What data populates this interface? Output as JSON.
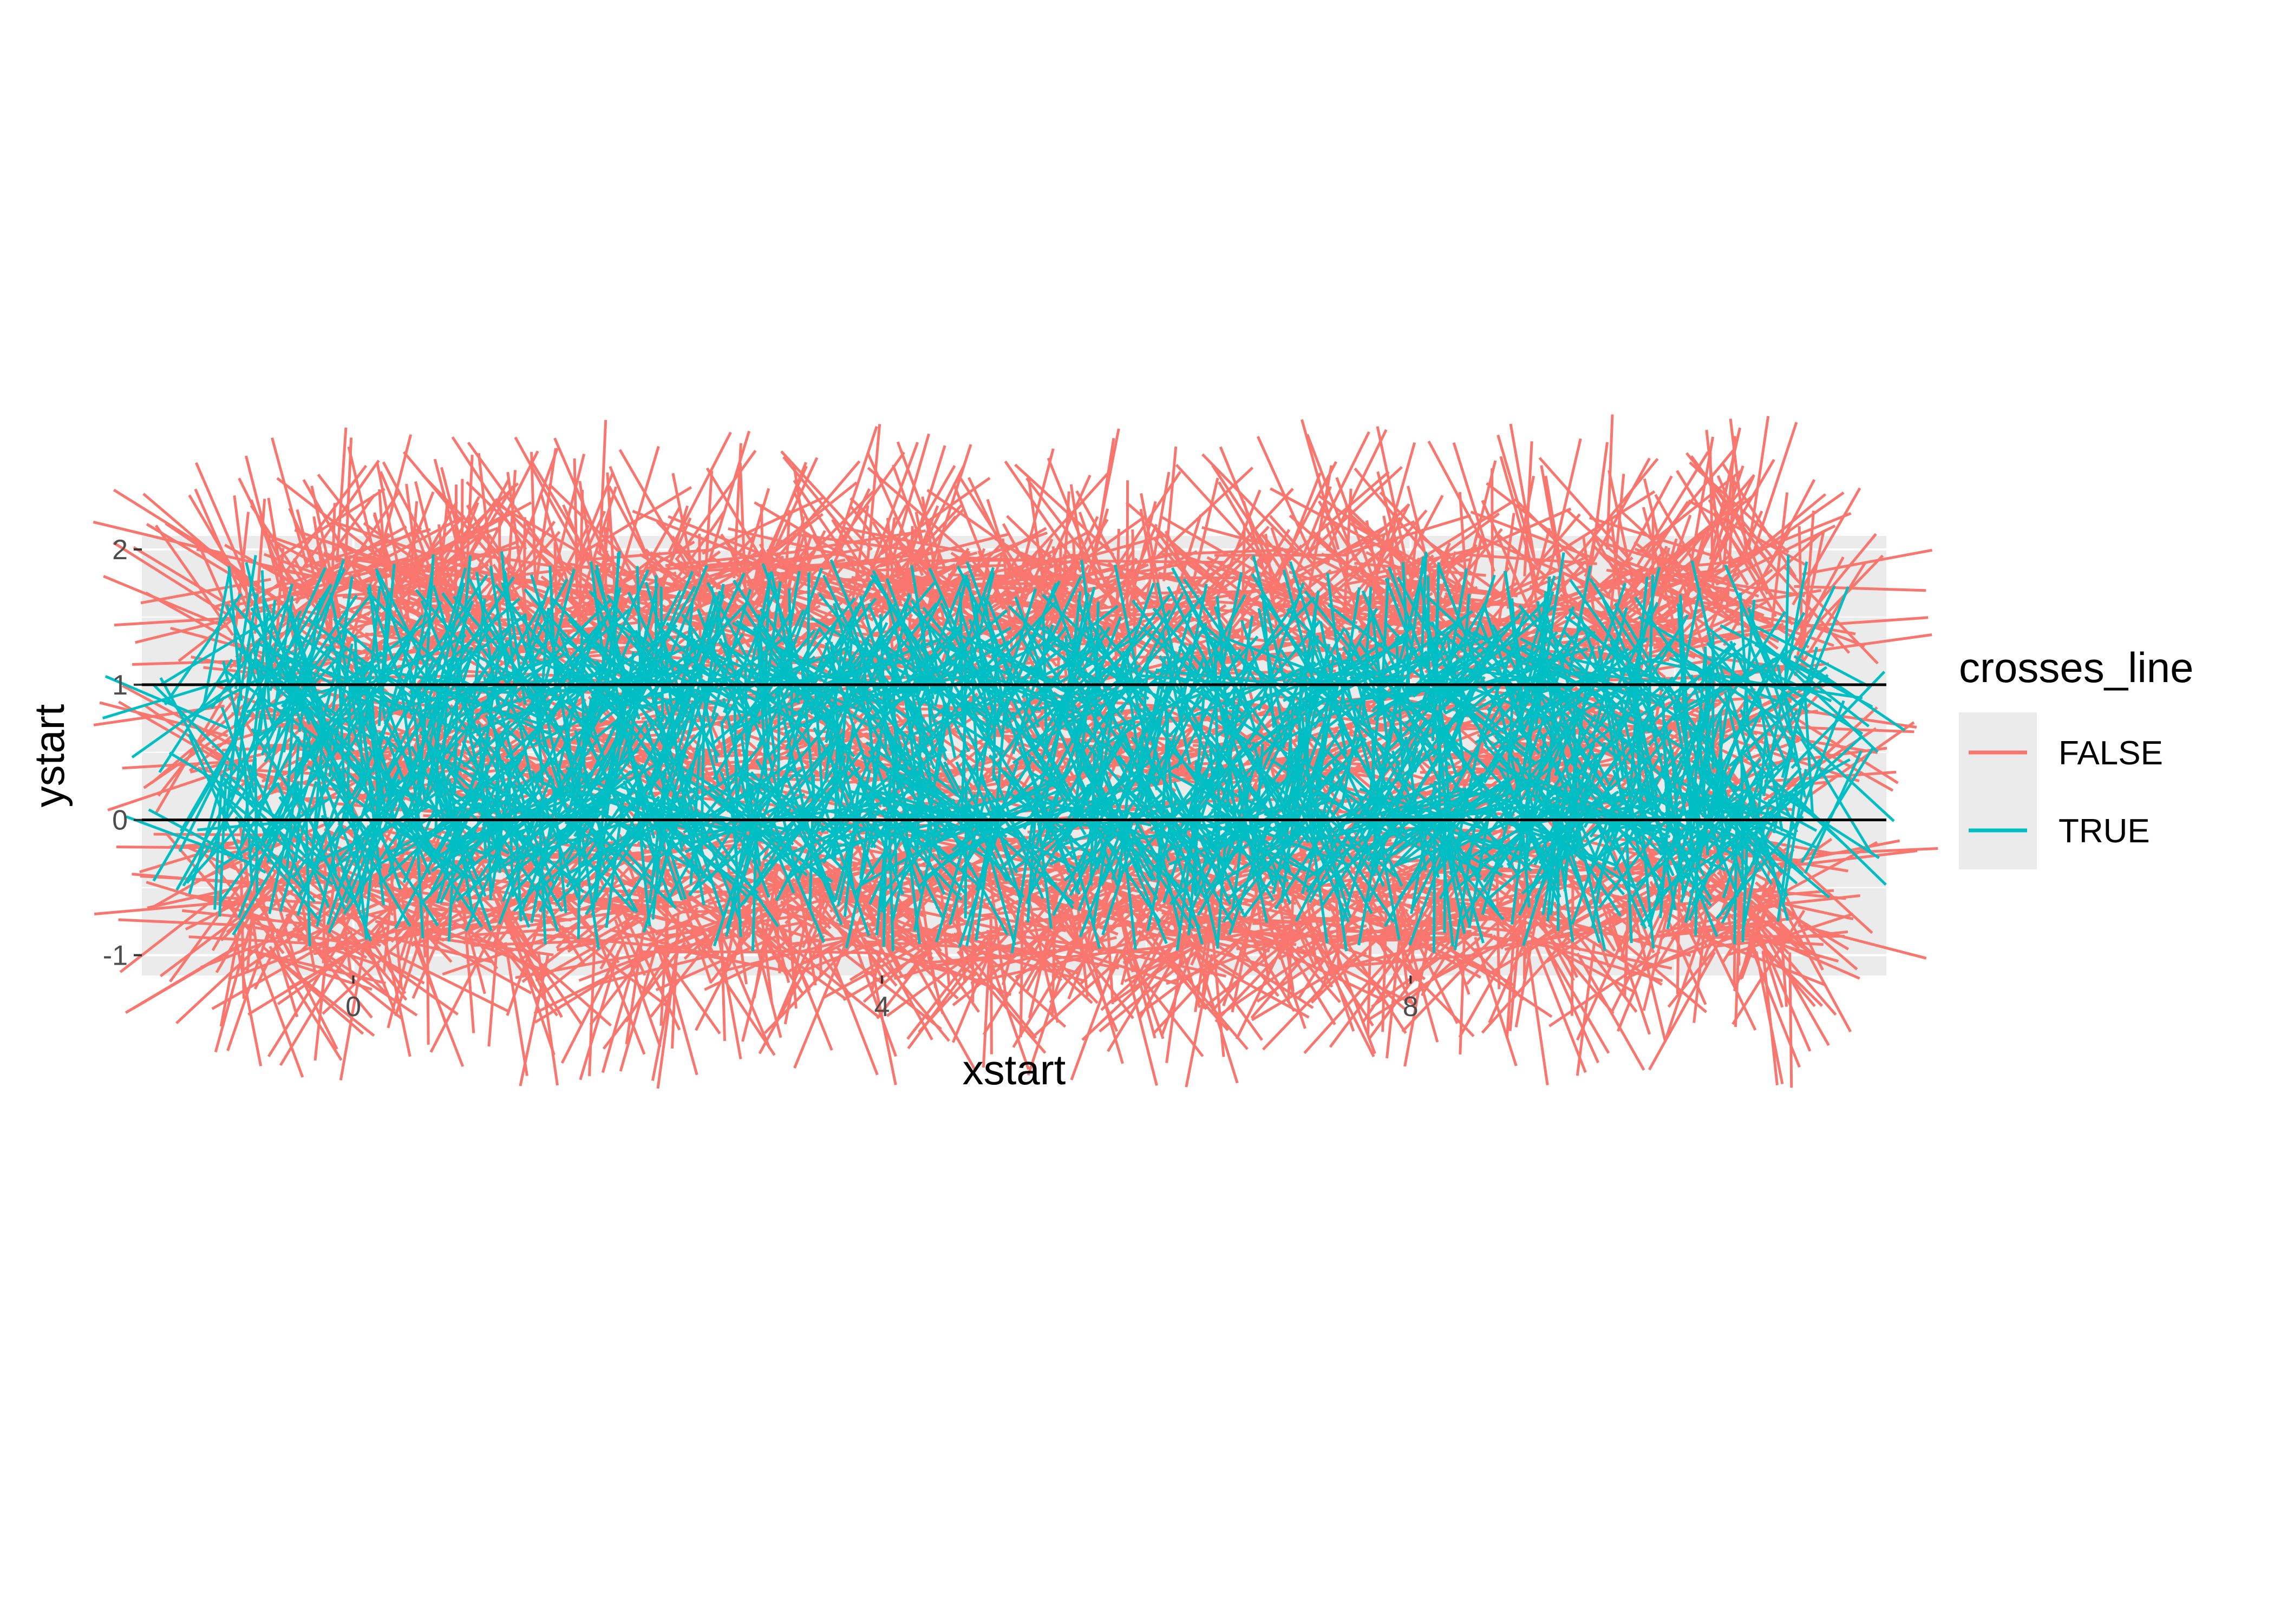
{
  "chart_data": {
    "type": "segment",
    "xlabel": "xstart",
    "ylabel": "ystart",
    "xlim": [
      -1.6,
      11.6
    ],
    "ylim": [
      -1.15,
      2.1
    ],
    "x_ticks": [
      0,
      4,
      8
    ],
    "x_tick_labels": [
      "0",
      "4",
      "8"
    ],
    "y_ticks": [
      -1,
      0,
      1,
      2
    ],
    "y_tick_labels": [
      "-1",
      "0",
      "1",
      "2"
    ],
    "reference_lines": [
      0,
      1
    ],
    "background": "#ebebeb",
    "grid": true,
    "legend": {
      "title": "crosses_line",
      "position": "right",
      "entries": [
        {
          "label": "FALSE",
          "color": "#f8766d"
        },
        {
          "label": "TRUE",
          "color": "#00bfc4"
        }
      ]
    },
    "series": [
      {
        "name": "FALSE",
        "color": "#f8766d",
        "description_values": {
          "segment_length": 1,
          "x_range": [
            -1,
            11
          ],
          "y_range": [
            0,
            1
          ]
        }
      },
      {
        "name": "TRUE",
        "color": "#00bfc4",
        "description_values": {
          "segment_length": 1,
          "x_range": [
            -1,
            11
          ],
          "y_range": [
            -1,
            2
          ]
        }
      }
    ]
  }
}
